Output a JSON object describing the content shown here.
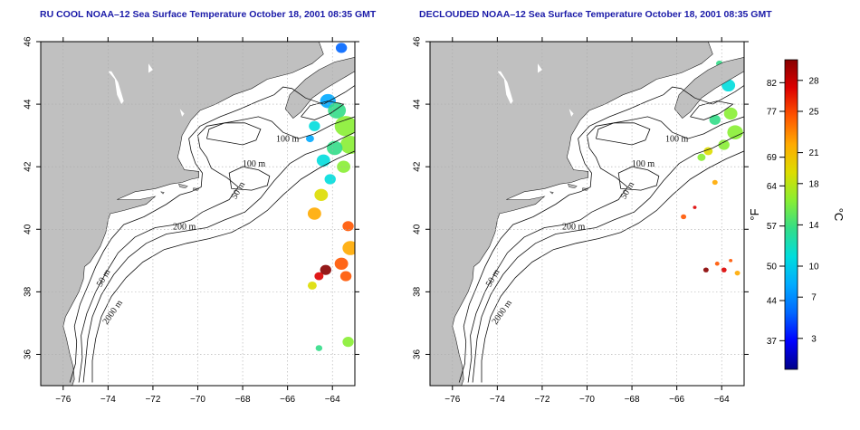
{
  "panels": [
    {
      "id": "left",
      "title": "RU COOL NOAA–12 Sea Surface Temperature October 18, 2001 08:35 GMT",
      "contour_labels": [
        "100 m",
        "100 m",
        "50 m",
        "200 m",
        "50 m",
        "2000 m"
      ]
    },
    {
      "id": "right",
      "title": "DECLOUDED NOAA–12 Sea Surface Temperature October 18, 2001 08:35 GMT",
      "contour_labels": [
        "100 m",
        "100 m",
        "50 m",
        "200 m",
        "50 m",
        "2000 m"
      ]
    }
  ],
  "axes": {
    "x_ticks": [
      "−76",
      "−74",
      "−72",
      "−70",
      "−68",
      "−66",
      "−64"
    ],
    "y_ticks": [
      "36",
      "38",
      "40",
      "42",
      "44",
      "46"
    ],
    "lon_range": [
      -77,
      -63
    ],
    "lat_range": [
      35,
      46
    ],
    "grid": "dotted"
  },
  "colorbar": {
    "f_label": "°F",
    "c_label": "°C",
    "f_ticks": [
      "82",
      "77",
      "69",
      "64",
      "57",
      "50",
      "44",
      "37"
    ],
    "c_ticks": [
      "28",
      "25",
      "21",
      "18",
      "14",
      "10",
      "7",
      "3"
    ],
    "colors": [
      "#000088",
      "#0000ff",
      "#0066ff",
      "#00aaff",
      "#00dddd",
      "#33dd88",
      "#88ee33",
      "#dddd00",
      "#ffaa00",
      "#ff5500",
      "#dd0000",
      "#880000"
    ]
  },
  "colors": {
    "land": "#c0c0c0",
    "ocean": "#ffffff",
    "title": "#1a1aa8",
    "grid": "#aaaaaa"
  }
}
